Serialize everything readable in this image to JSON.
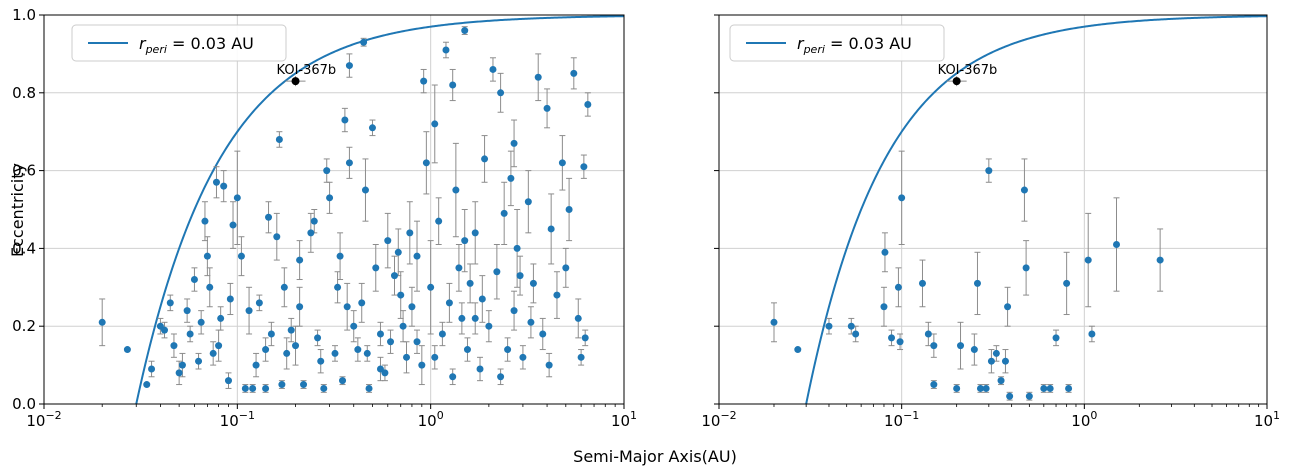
{
  "figure": {
    "xlabel": "Semi-Major Axis(AU)"
  },
  "chart_data": [
    {
      "type": "scatter",
      "xlabel": "",
      "ylabel": "Eccentricity",
      "xscale": "log",
      "xlim": [
        0.01,
        10
      ],
      "ylim": [
        0,
        1
      ],
      "xtick_labels": [
        "10^-2",
        "10^-1",
        "10^0",
        "10^1"
      ],
      "ytick_labels": [
        "0.0",
        "0.2",
        "0.4",
        "0.6",
        "0.8",
        "1.0"
      ],
      "grid": true,
      "legend": {
        "placement": "top-left",
        "entry": "r_peri = 0.03 AU"
      },
      "curve": {
        "name": "r_peri = 0.03 AU",
        "formula": "e = 1 - 0.03 / a",
        "color": "#1f77b4"
      },
      "highlight": {
        "label": "KOI-367b",
        "x": 0.2,
        "y": 0.83,
        "color": "#000000"
      },
      "point_color": "#1f77b4",
      "errorbar_color": "#8c8c8c",
      "series": [
        {
          "name": "planets",
          "points": [
            [
              0.02,
              0.21,
              0.06
            ],
            [
              0.027,
              0.14,
              0.0
            ],
            [
              0.034,
              0.05,
              0.0
            ],
            [
              0.036,
              0.09,
              0.02
            ],
            [
              0.04,
              0.2,
              0.02
            ],
            [
              0.042,
              0.19,
              0.02
            ],
            [
              0.045,
              0.26,
              0.02
            ],
            [
              0.047,
              0.15,
              0.03
            ],
            [
              0.05,
              0.08,
              0.03
            ],
            [
              0.052,
              0.1,
              0.03
            ],
            [
              0.055,
              0.24,
              0.03
            ],
            [
              0.057,
              0.18,
              0.02
            ],
            [
              0.06,
              0.32,
              0.03
            ],
            [
              0.063,
              0.11,
              0.02
            ],
            [
              0.065,
              0.21,
              0.03
            ],
            [
              0.068,
              0.47,
              0.05
            ],
            [
              0.07,
              0.38,
              0.05
            ],
            [
              0.072,
              0.3,
              0.05
            ],
            [
              0.075,
              0.13,
              0.03
            ],
            [
              0.078,
              0.57,
              0.04
            ],
            [
              0.08,
              0.15,
              0.04
            ],
            [
              0.082,
              0.22,
              0.03
            ],
            [
              0.085,
              0.56,
              0.04
            ],
            [
              0.09,
              0.06,
              0.02
            ],
            [
              0.095,
              0.46,
              0.06
            ],
            [
              0.1,
              0.53,
              0.12
            ],
            [
              0.105,
              0.38,
              0.05
            ],
            [
              0.11,
              0.04,
              0.01
            ],
            [
              0.115,
              0.24,
              0.06
            ],
            [
              0.12,
              0.04,
              0.01
            ],
            [
              0.125,
              0.1,
              0.03
            ],
            [
              0.13,
              0.26,
              0.02
            ],
            [
              0.14,
              0.04,
              0.01
            ],
            [
              0.145,
              0.48,
              0.04
            ],
            [
              0.15,
              0.18,
              0.03
            ],
            [
              0.16,
              0.43,
              0.06
            ],
            [
              0.165,
              0.68,
              0.02
            ],
            [
              0.17,
              0.05,
              0.01
            ],
            [
              0.175,
              0.3,
              0.05
            ],
            [
              0.18,
              0.13,
              0.04
            ],
            [
              0.19,
              0.19,
              0.03
            ],
            [
              0.2,
              0.15,
              0.05
            ],
            [
              0.21,
              0.37,
              0.05
            ],
            [
              0.22,
              0.05,
              0.01
            ],
            [
              0.24,
              0.44,
              0.05
            ],
            [
              0.25,
              0.47,
              0.03
            ],
            [
              0.26,
              0.17,
              0.02
            ],
            [
              0.27,
              0.11,
              0.03
            ],
            [
              0.28,
              0.04,
              0.01
            ],
            [
              0.29,
              0.6,
              0.03
            ],
            [
              0.3,
              0.53,
              0.04
            ],
            [
              0.32,
              0.13,
              0.02
            ],
            [
              0.34,
              0.38,
              0.06
            ],
            [
              0.35,
              0.06,
              0.01
            ],
            [
              0.36,
              0.73,
              0.03
            ],
            [
              0.37,
              0.25,
              0.06
            ],
            [
              0.38,
              0.87,
              0.03
            ],
            [
              0.4,
              0.2,
              0.04
            ],
            [
              0.42,
              0.14,
              0.03
            ],
            [
              0.44,
              0.26,
              0.05
            ],
            [
              0.45,
              0.93,
              0.01
            ],
            [
              0.46,
              0.55,
              0.08
            ],
            [
              0.47,
              0.13,
              0.02
            ],
            [
              0.48,
              0.04,
              0.01
            ],
            [
              0.5,
              0.71,
              0.02
            ],
            [
              0.52,
              0.35,
              0.06
            ],
            [
              0.55,
              0.18,
              0.03
            ],
            [
              0.58,
              0.08,
              0.02
            ],
            [
              0.6,
              0.42,
              0.07
            ],
            [
              0.62,
              0.16,
              0.03
            ],
            [
              0.65,
              0.33,
              0.05
            ],
            [
              0.7,
              0.28,
              0.06
            ],
            [
              0.72,
              0.2,
              0.04
            ],
            [
              0.75,
              0.12,
              0.04
            ],
            [
              0.78,
              0.44,
              0.08
            ],
            [
              0.8,
              0.25,
              0.05
            ],
            [
              0.85,
              0.38,
              0.09
            ],
            [
              0.9,
              0.1,
              0.05
            ],
            [
              0.92,
              0.83,
              0.03
            ],
            [
              0.95,
              0.62,
              0.08
            ],
            [
              1.0,
              0.3,
              0.12
            ],
            [
              1.05,
              0.72,
              0.1
            ],
            [
              1.1,
              0.47,
              0.06
            ],
            [
              1.15,
              0.18,
              0.03
            ],
            [
              1.2,
              0.91,
              0.02
            ],
            [
              1.25,
              0.26,
              0.05
            ],
            [
              1.3,
              0.07,
              0.02
            ],
            [
              1.35,
              0.55,
              0.12
            ],
            [
              1.4,
              0.35,
              0.06
            ],
            [
              1.45,
              0.22,
              0.04
            ],
            [
              1.5,
              0.96,
              0.01
            ],
            [
              1.55,
              0.14,
              0.03
            ],
            [
              1.6,
              0.31,
              0.05
            ],
            [
              1.7,
              0.44,
              0.08
            ],
            [
              1.8,
              0.09,
              0.03
            ],
            [
              1.85,
              0.27,
              0.06
            ],
            [
              1.9,
              0.63,
              0.06
            ],
            [
              2.0,
              0.2,
              0.04
            ],
            [
              2.1,
              0.86,
              0.03
            ],
            [
              2.2,
              0.34,
              0.07
            ],
            [
              2.3,
              0.8,
              0.05
            ],
            [
              2.4,
              0.49,
              0.08
            ],
            [
              2.5,
              0.14,
              0.03
            ],
            [
              2.6,
              0.58,
              0.07
            ],
            [
              2.7,
              0.24,
              0.05
            ],
            [
              2.8,
              0.4,
              0.1
            ],
            [
              3.0,
              0.12,
              0.03
            ],
            [
              3.2,
              0.52,
              0.08
            ],
            [
              3.4,
              0.31,
              0.05
            ],
            [
              3.6,
              0.84,
              0.06
            ],
            [
              3.8,
              0.18,
              0.04
            ],
            [
              4.0,
              0.76,
              0.05
            ],
            [
              4.2,
              0.45,
              0.09
            ],
            [
              4.5,
              0.28,
              0.06
            ],
            [
              4.8,
              0.62,
              0.07
            ],
            [
              5.0,
              0.35,
              0.05
            ],
            [
              5.5,
              0.85,
              0.04
            ],
            [
              5.8,
              0.22,
              0.05
            ],
            [
              6.0,
              0.12,
              0.02
            ],
            [
              6.5,
              0.77,
              0.03
            ],
            [
              6.2,
              0.61,
              0.03
            ],
            [
              6.3,
              0.17,
              0.02
            ],
            [
              0.38,
              0.62,
              0.04
            ],
            [
              0.55,
              0.09,
              0.03
            ],
            [
              0.68,
              0.39,
              0.06
            ],
            [
              1.05,
              0.12,
              0.03
            ],
            [
              1.7,
              0.22,
              0.04
            ],
            [
              2.3,
              0.07,
              0.02
            ],
            [
              2.9,
              0.33,
              0.05
            ],
            [
              3.3,
              0.21,
              0.04
            ],
            [
              4.1,
              0.1,
              0.03
            ],
            [
              5.2,
              0.5,
              0.08
            ],
            [
              1.3,
              0.82,
              0.04
            ],
            [
              0.85,
              0.16,
              0.03
            ],
            [
              1.5,
              0.42,
              0.08
            ],
            [
              2.7,
              0.67,
              0.06
            ],
            [
              0.33,
              0.3,
              0.04
            ],
            [
              0.21,
              0.25,
              0.05
            ],
            [
              0.14,
              0.14,
              0.03
            ],
            [
              0.092,
              0.27,
              0.04
            ]
          ]
        }
      ]
    },
    {
      "type": "scatter",
      "xlabel": "",
      "ylabel": "",
      "xscale": "log",
      "xlim": [
        0.01,
        10
      ],
      "ylim": [
        0,
        1
      ],
      "xtick_labels": [
        "10^-2",
        "10^-1",
        "10^0",
        "10^1"
      ],
      "ytick_labels": [],
      "grid": true,
      "legend": {
        "placement": "top-left",
        "entry": "r_peri = 0.03 AU"
      },
      "curve": {
        "name": "r_peri = 0.03 AU",
        "formula": "e = 1 - 0.03 / a",
        "color": "#1f77b4"
      },
      "highlight": {
        "label": "KOI-367b",
        "x": 0.2,
        "y": 0.83,
        "color": "#000000"
      },
      "point_color": "#1f77b4",
      "errorbar_color": "#8c8c8c",
      "series": [
        {
          "name": "planets",
          "points": [
            [
              0.02,
              0.21,
              0.05
            ],
            [
              0.027,
              0.14,
              0.0
            ],
            [
              0.04,
              0.2,
              0.02
            ],
            [
              0.053,
              0.2,
              0.02
            ],
            [
              0.056,
              0.18,
              0.02
            ],
            [
              0.08,
              0.25,
              0.05
            ],
            [
              0.081,
              0.39,
              0.05
            ],
            [
              0.088,
              0.17,
              0.02
            ],
            [
              0.096,
              0.3,
              0.05
            ],
            [
              0.098,
              0.16,
              0.02
            ],
            [
              0.1,
              0.53,
              0.12
            ],
            [
              0.13,
              0.31,
              0.06
            ],
            [
              0.14,
              0.18,
              0.03
            ],
            [
              0.15,
              0.15,
              0.03
            ],
            [
              0.15,
              0.05,
              0.01
            ],
            [
              0.2,
              0.04,
              0.01
            ],
            [
              0.21,
              0.15,
              0.06
            ],
            [
              0.25,
              0.14,
              0.04
            ],
            [
              0.26,
              0.31,
              0.08
            ],
            [
              0.27,
              0.04,
              0.01
            ],
            [
              0.3,
              0.6,
              0.03
            ],
            [
              0.31,
              0.11,
              0.03
            ],
            [
              0.33,
              0.13,
              0.02
            ],
            [
              0.35,
              0.06,
              0.01
            ],
            [
              0.38,
              0.25,
              0.05
            ],
            [
              0.39,
              0.02,
              0.01
            ],
            [
              0.47,
              0.55,
              0.08
            ],
            [
              0.48,
              0.35,
              0.07
            ],
            [
              0.5,
              0.02,
              0.01
            ],
            [
              0.6,
              0.04,
              0.01
            ],
            [
              0.7,
              0.17,
              0.02
            ],
            [
              0.8,
              0.31,
              0.08
            ],
            [
              0.82,
              0.04,
              0.01
            ],
            [
              1.05,
              0.37,
              0.12
            ],
            [
              1.1,
              0.18,
              0.02
            ],
            [
              1.5,
              0.41,
              0.12
            ],
            [
              2.6,
              0.37,
              0.08
            ],
            [
              0.65,
              0.04,
              0.01
            ],
            [
              0.29,
              0.04,
              0.01
            ],
            [
              0.37,
              0.11,
              0.03
            ]
          ]
        }
      ]
    }
  ]
}
